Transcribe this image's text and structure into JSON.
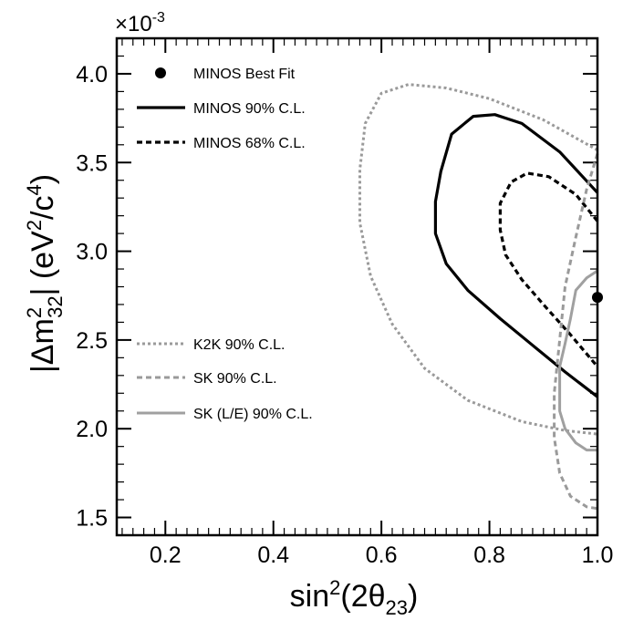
{
  "chart_data": {
    "type": "line",
    "xlabel": "sin²(2θ₂₃)",
    "ylabel": "|Δm²₃₂| (eV²/c⁴)",
    "xlabel_parts": {
      "pre": "sin",
      "sup": "2",
      "mid": "(2θ",
      "sub": "23",
      "post": ")"
    },
    "ylabel_parts": {
      "p1": "|Δm",
      "sup1": "2",
      "sub1": "32",
      "p2": "| (eV",
      "sup2": "2",
      "p3": "/c",
      "sup3": "4",
      "p4": ")"
    },
    "y_multiplier": {
      "base": "×10",
      "exponent": "-3"
    },
    "xlim": [
      0.11,
      1.0
    ],
    "ylim": [
      1.4,
      4.2
    ],
    "x_ticks": [
      "0.2",
      "0.4",
      "0.6",
      "0.8",
      "1.0"
    ],
    "y_ticks": [
      "1.5",
      "2.0",
      "2.5",
      "3.0",
      "3.5",
      "4.0"
    ],
    "best_fit": {
      "x": 1.0,
      "y": 2.74
    },
    "series": [
      {
        "name": "MINOS 90% C.L.",
        "color": "#000000",
        "style": "solid",
        "points": [
          [
            1.0,
            3.33
          ],
          [
            0.93,
            3.56
          ],
          [
            0.86,
            3.72
          ],
          [
            0.81,
            3.77
          ],
          [
            0.77,
            3.76
          ],
          [
            0.73,
            3.66
          ],
          [
            0.71,
            3.45
          ],
          [
            0.7,
            3.28
          ],
          [
            0.7,
            3.1
          ],
          [
            0.72,
            2.93
          ],
          [
            0.76,
            2.78
          ],
          [
            0.82,
            2.62
          ],
          [
            0.88,
            2.47
          ],
          [
            0.94,
            2.32
          ],
          [
            1.0,
            2.18
          ]
        ]
      },
      {
        "name": "MINOS 68% C.L.",
        "color": "#000000",
        "style": "dashed",
        "points": [
          [
            1.0,
            3.17
          ],
          [
            0.96,
            3.32
          ],
          [
            0.91,
            3.42
          ],
          [
            0.87,
            3.44
          ],
          [
            0.84,
            3.39
          ],
          [
            0.82,
            3.27
          ],
          [
            0.82,
            3.12
          ],
          [
            0.83,
            2.98
          ],
          [
            0.86,
            2.84
          ],
          [
            0.9,
            2.7
          ],
          [
            0.95,
            2.53
          ],
          [
            1.0,
            2.35
          ]
        ]
      },
      {
        "name": "K2K 90% C.L.",
        "color": "#9a9a9a",
        "style": "dotted",
        "points": [
          [
            1.0,
            3.57
          ],
          [
            0.9,
            3.74
          ],
          [
            0.8,
            3.86
          ],
          [
            0.72,
            3.92
          ],
          [
            0.65,
            3.94
          ],
          [
            0.6,
            3.89
          ],
          [
            0.57,
            3.72
          ],
          [
            0.56,
            3.46
          ],
          [
            0.56,
            3.16
          ],
          [
            0.58,
            2.86
          ],
          [
            0.62,
            2.59
          ],
          [
            0.68,
            2.34
          ],
          [
            0.76,
            2.16
          ],
          [
            0.86,
            2.04
          ],
          [
            0.94,
            1.99
          ],
          [
            1.0,
            1.97
          ]
        ]
      },
      {
        "name": "SK 90% C.L.",
        "color": "#9a9a9a",
        "style": "dashed",
        "points": [
          [
            1.0,
            3.55
          ],
          [
            0.98,
            3.35
          ],
          [
            0.96,
            3.08
          ],
          [
            0.94,
            2.8
          ],
          [
            0.93,
            2.5
          ],
          [
            0.92,
            2.2
          ],
          [
            0.92,
            1.95
          ],
          [
            0.93,
            1.75
          ],
          [
            0.95,
            1.62
          ],
          [
            0.98,
            1.56
          ],
          [
            1.0,
            1.55
          ]
        ]
      },
      {
        "name": "SK (L/E) 90% C.L.",
        "color": "#a0a0a0",
        "style": "solid",
        "points": [
          [
            1.0,
            2.89
          ],
          [
            0.98,
            2.85
          ],
          [
            0.96,
            2.78
          ],
          [
            0.95,
            2.62
          ],
          [
            0.94,
            2.48
          ],
          [
            0.93,
            2.35
          ],
          [
            0.93,
            2.22
          ],
          [
            0.93,
            2.1
          ],
          [
            0.94,
            2.0
          ],
          [
            0.96,
            1.92
          ],
          [
            0.98,
            1.88
          ],
          [
            1.0,
            1.88
          ]
        ]
      }
    ],
    "legend": {
      "placement": "top-left / lower-left",
      "entries": [
        {
          "label": "MINOS Best Fit",
          "marker": "dot"
        },
        {
          "label": "MINOS 90% C.L.",
          "series": 0
        },
        {
          "label": "MINOS 68% C.L.",
          "series": 1
        },
        {
          "label": "K2K 90% C.L.",
          "series": 2
        },
        {
          "label": "SK 90% C.L.",
          "series": 3
        },
        {
          "label": "SK (L/E) 90% C.L.",
          "series": 4
        }
      ]
    },
    "grid": false
  }
}
